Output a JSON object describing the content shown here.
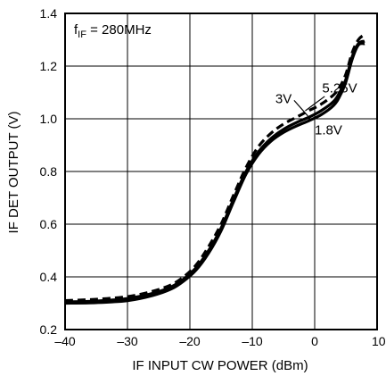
{
  "chart_data": {
    "type": "line",
    "xlabel": "IF INPUT CW POWER (dBm)",
    "ylabel": "IF DET OUTPUT (V)",
    "xlim": [
      -40,
      10
    ],
    "ylim": [
      0.2,
      1.4
    ],
    "xticks": [
      -40,
      -30,
      -20,
      -10,
      0,
      10
    ],
    "xtick_labels": [
      "–40",
      "–30",
      "–20",
      "–10",
      "0",
      "10"
    ],
    "yticks": [
      0.2,
      0.4,
      0.6,
      0.8,
      1.0,
      1.2,
      1.4
    ],
    "ytick_labels": [
      "0.2",
      "0.4",
      "0.6",
      "0.8",
      "1.0",
      "1.2",
      "1.4"
    ],
    "grid": true,
    "condition": {
      "prefix": "f",
      "subscript": "IF",
      "suffix": " = 280MHz"
    },
    "series": [
      {
        "name": "5.25V",
        "style": "dashed",
        "x": [
          -40,
          -35,
          -30,
          -26,
          -23,
          -21,
          -19,
          -17,
          -15,
          -13,
          -11,
          -9,
          -7,
          -5,
          -3,
          -1,
          1,
          3,
          4,
          5,
          6,
          7,
          8
        ],
        "y": [
          0.31,
          0.315,
          0.325,
          0.345,
          0.37,
          0.4,
          0.445,
          0.515,
          0.6,
          0.71,
          0.815,
          0.895,
          0.945,
          0.98,
          1.005,
          1.03,
          1.055,
          1.09,
          1.12,
          1.17,
          1.25,
          1.3,
          1.32
        ]
      },
      {
        "name": "3V",
        "style": "solid",
        "x": [
          -40,
          -35,
          -30,
          -26,
          -23,
          -21,
          -19,
          -17,
          -15,
          -13,
          -11,
          -9,
          -7,
          -5,
          -3,
          -1,
          1,
          3,
          4,
          5,
          6,
          7,
          8
        ],
        "y": [
          0.305,
          0.308,
          0.318,
          0.337,
          0.362,
          0.392,
          0.435,
          0.5,
          0.585,
          0.695,
          0.8,
          0.875,
          0.925,
          0.96,
          0.985,
          1.005,
          1.03,
          1.065,
          1.1,
          1.15,
          1.235,
          1.285,
          1.295
        ]
      },
      {
        "name": "1.8V",
        "style": "solid",
        "x": [
          -40,
          -35,
          -30,
          -26,
          -23,
          -21,
          -19,
          -17,
          -15,
          -13,
          -11,
          -9,
          -7,
          -5,
          -3,
          -1,
          1,
          3,
          4,
          5,
          6,
          7,
          8
        ],
        "y": [
          0.3,
          0.302,
          0.31,
          0.329,
          0.354,
          0.384,
          0.426,
          0.49,
          0.575,
          0.685,
          0.79,
          0.865,
          0.915,
          0.948,
          0.972,
          0.992,
          1.015,
          1.05,
          1.085,
          1.14,
          1.225,
          1.28,
          1.285
        ]
      }
    ],
    "annotations": [
      {
        "text": "3V",
        "x": -6.3,
        "y": 1.06
      },
      {
        "text": "5.25V",
        "x": 1.2,
        "y": 1.1
      },
      {
        "text": "1.8V",
        "x": 0,
        "y": 0.94
      }
    ]
  }
}
